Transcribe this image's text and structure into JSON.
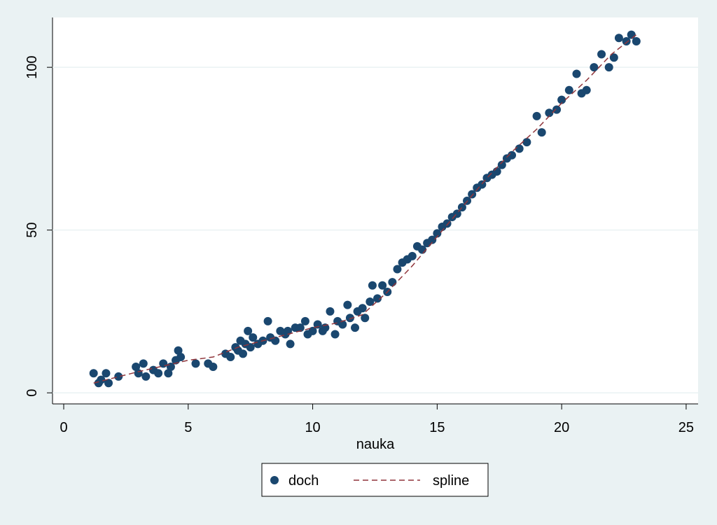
{
  "chart_data": {
    "type": "scatter",
    "xlabel": "nauka",
    "xlim": [
      -0.45,
      25.48
    ],
    "ylim": [
      -3.4,
      115.3
    ],
    "xticks": [
      0,
      5,
      10,
      15,
      20,
      25
    ],
    "yticks": [
      0,
      50,
      100
    ],
    "grid": true,
    "series": [
      {
        "name": "doch",
        "type": "scatter",
        "color": "#1a476f",
        "x": [
          1.2,
          1.4,
          1.5,
          1.7,
          1.8,
          2.2,
          2.9,
          3.0,
          3.2,
          3.3,
          3.6,
          3.8,
          4.0,
          4.2,
          4.3,
          4.5,
          4.6,
          4.7,
          5.3,
          5.8,
          6.0,
          6.5,
          6.7,
          6.9,
          7.0,
          7.1,
          7.2,
          7.3,
          7.4,
          7.5,
          7.6,
          7.8,
          8.0,
          8.2,
          8.3,
          8.5,
          8.7,
          8.9,
          9.0,
          9.1,
          9.3,
          9.5,
          9.7,
          9.8,
          10.0,
          10.2,
          10.4,
          10.5,
          10.7,
          10.9,
          11.0,
          11.2,
          11.4,
          11.5,
          11.7,
          11.8,
          12.0,
          12.1,
          12.3,
          12.4,
          12.6,
          12.8,
          13.0,
          13.2,
          13.4,
          13.6,
          13.8,
          14.0,
          14.2,
          14.4,
          14.6,
          14.8,
          15.0,
          15.2,
          15.4,
          15.6,
          15.8,
          16.0,
          16.2,
          16.4,
          16.6,
          16.8,
          17.0,
          17.2,
          17.4,
          17.6,
          17.8,
          18.0,
          18.3,
          18.6,
          19.0,
          19.2,
          19.5,
          19.8,
          20.0,
          20.3,
          20.6,
          20.8,
          21.0,
          21.3,
          21.6,
          21.9,
          22.1,
          22.3,
          22.6,
          22.8,
          23.0
        ],
        "values": [
          6,
          3,
          4,
          6,
          3,
          5,
          8,
          6,
          9,
          5,
          7,
          6,
          9,
          6,
          8,
          10,
          13,
          11,
          9,
          9,
          8,
          12,
          11,
          14,
          13,
          16,
          12,
          15,
          19,
          14,
          17,
          15,
          16,
          22,
          17,
          16,
          19,
          18,
          19,
          15,
          20,
          20,
          22,
          18,
          19,
          21,
          19,
          20,
          25,
          18,
          22,
          21,
          27,
          23,
          20,
          25,
          26,
          23,
          28,
          33,
          29,
          33,
          31,
          34,
          38,
          40,
          41,
          42,
          45,
          44,
          46,
          47,
          49,
          51,
          52,
          54,
          55,
          57,
          59,
          61,
          63,
          64,
          66,
          67,
          68,
          70,
          72,
          73,
          75,
          77,
          85,
          80,
          86,
          87,
          90,
          93,
          98,
          92,
          93,
          100,
          104,
          100,
          103,
          109,
          108,
          110,
          108
        ]
      },
      {
        "name": "spline",
        "type": "line",
        "color": "#90353b",
        "x": [
          1.2,
          3,
          5,
          6,
          7,
          8,
          9,
          10,
          11,
          12,
          13,
          14,
          15,
          16,
          17,
          18,
          19,
          20,
          21,
          22,
          23
        ],
        "values": [
          3,
          6.5,
          10,
          11,
          14,
          16,
          18,
          20,
          21.5,
          24,
          31,
          39,
          48,
          57,
          66,
          74,
          81,
          89,
          96,
          104,
          110
        ]
      }
    ]
  }
}
